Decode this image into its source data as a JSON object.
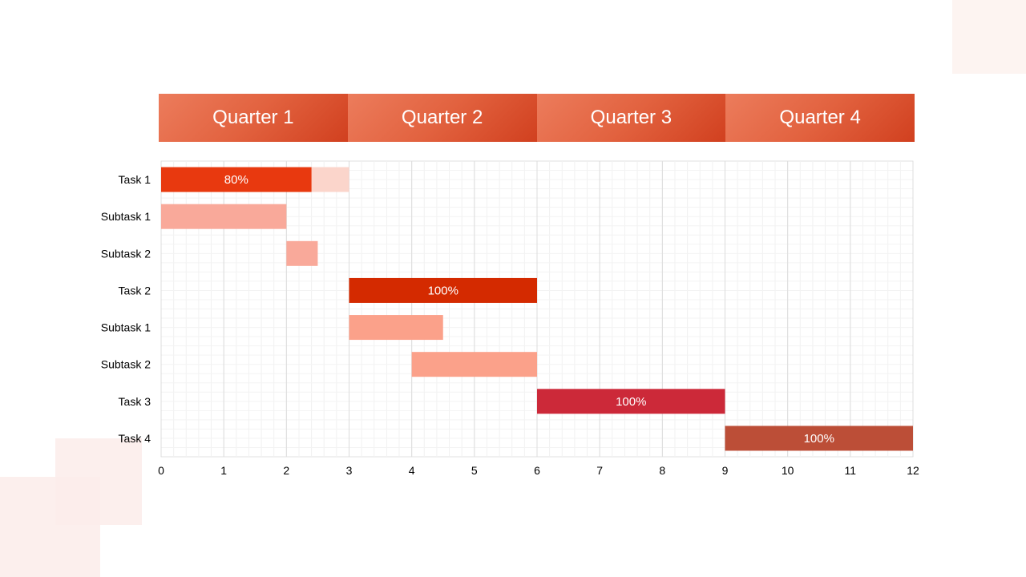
{
  "quarters": [
    "Quarter 1",
    "Quarter 2",
    "Quarter 3",
    "Quarter 4"
  ],
  "chart_data": {
    "type": "bar",
    "orientation": "horizontal-gantt",
    "xlim": [
      0,
      12
    ],
    "xticks": [
      0,
      1,
      2,
      3,
      4,
      5,
      6,
      7,
      8,
      9,
      10,
      11,
      12
    ],
    "grid": true,
    "rows": [
      {
        "label": "Task 1",
        "start": 0,
        "end": 3,
        "progress": 0.8,
        "progress_label": "80%",
        "color": "#e8390f",
        "remaining_color": "#fbd5cb"
      },
      {
        "label": "Subtask 1",
        "start": 0,
        "end": 2,
        "color": "#f9a99a"
      },
      {
        "label": "Subtask 2",
        "start": 2,
        "end": 2.5,
        "color": "#f9a99a"
      },
      {
        "label": "Task 2",
        "start": 3,
        "end": 6,
        "progress": 1.0,
        "progress_label": "100%",
        "color": "#d42a00"
      },
      {
        "label": "Subtask 1",
        "start": 3,
        "end": 4.5,
        "color": "#fba18a"
      },
      {
        "label": "Subtask 2",
        "start": 4,
        "end": 6,
        "color": "#fba18a"
      },
      {
        "label": "Task 3",
        "start": 6,
        "end": 9,
        "progress": 1.0,
        "progress_label": "100%",
        "color": "#cc2939"
      },
      {
        "label": "Task 4",
        "start": 9,
        "end": 12,
        "progress": 1.0,
        "progress_label": "100%",
        "color": "#bc4e37"
      }
    ]
  }
}
